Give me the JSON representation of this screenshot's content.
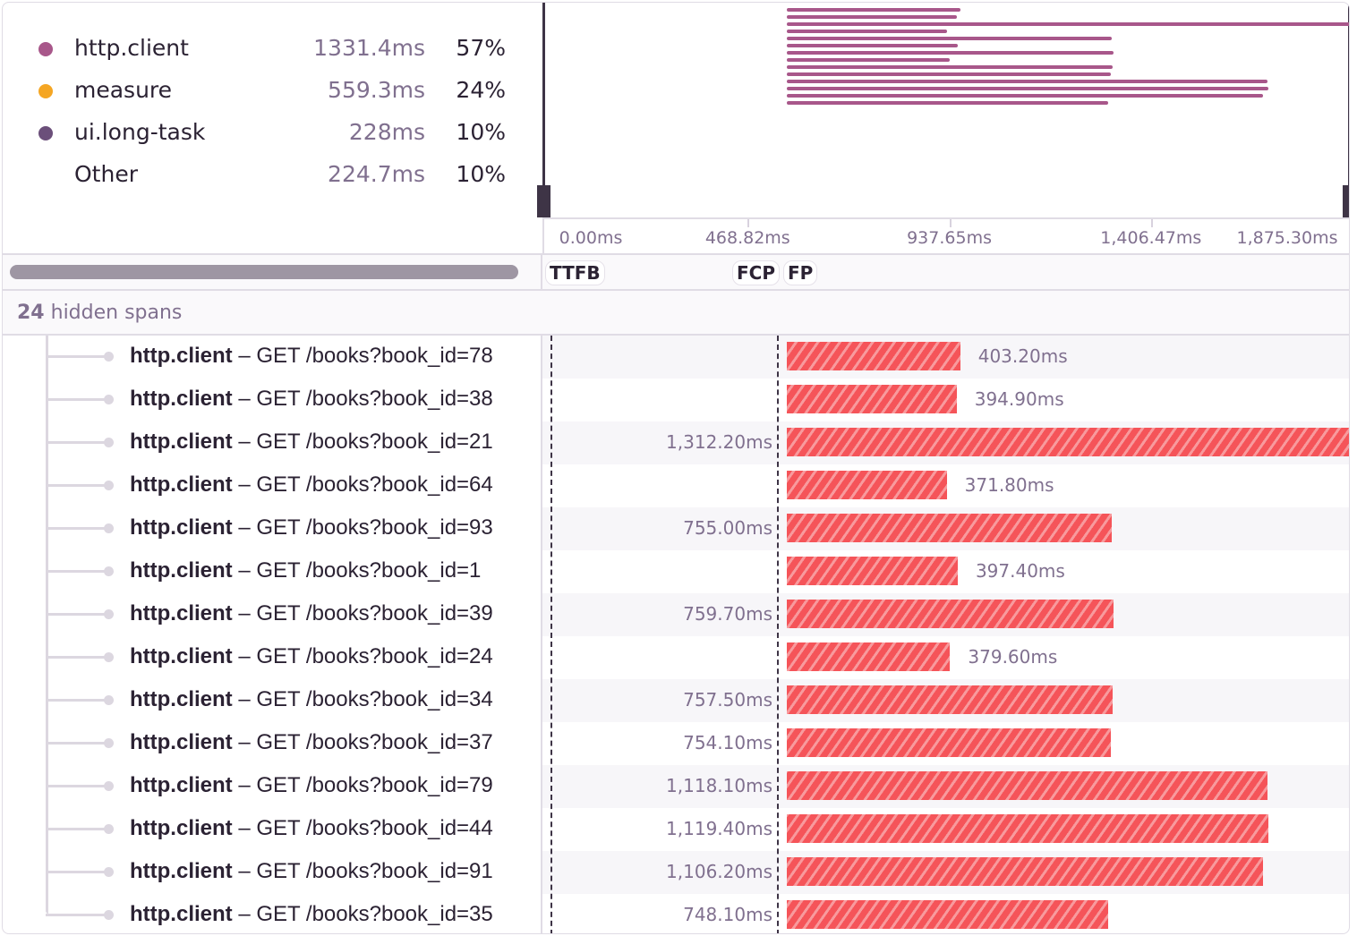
{
  "legend": [
    {
      "name": "http.client",
      "duration": "1331.4ms",
      "percent": "57%",
      "color": "#a8578a"
    },
    {
      "name": "measure",
      "duration": "559.3ms",
      "percent": "24%",
      "color": "#f5a623"
    },
    {
      "name": "ui.long-task",
      "duration": "228ms",
      "percent": "10%",
      "color": "#6b4f7a"
    },
    {
      "name": "Other",
      "duration": "224.7ms",
      "percent": "10%",
      "color": null
    }
  ],
  "axis": {
    "ticks": [
      "0.00ms",
      "468.82ms",
      "937.65ms",
      "1,406.47ms",
      "1,875.30ms"
    ],
    "tick_values_ms": [
      0,
      468.82,
      937.65,
      1406.47,
      1875.3
    ]
  },
  "markers": [
    "TTFB",
    "FCP",
    "FP"
  ],
  "hidden_spans": {
    "count": "24",
    "label": "hidden spans"
  },
  "colors": {
    "span_bar": "#f55459",
    "minimap_bar": "#a8578a"
  },
  "spans": [
    {
      "op": "http.client",
      "desc": "GET /books?book_id=78",
      "duration": "403.20ms",
      "ms": 403.2
    },
    {
      "op": "http.client",
      "desc": "GET /books?book_id=38",
      "duration": "394.90ms",
      "ms": 394.9
    },
    {
      "op": "http.client",
      "desc": "GET /books?book_id=21",
      "duration": "1,312.20ms",
      "ms": 1312.2
    },
    {
      "op": "http.client",
      "desc": "GET /books?book_id=64",
      "duration": "371.80ms",
      "ms": 371.8
    },
    {
      "op": "http.client",
      "desc": "GET /books?book_id=93",
      "duration": "755.00ms",
      "ms": 755.0
    },
    {
      "op": "http.client",
      "desc": "GET /books?book_id=1",
      "duration": "397.40ms",
      "ms": 397.4
    },
    {
      "op": "http.client",
      "desc": "GET /books?book_id=39",
      "duration": "759.70ms",
      "ms": 759.7
    },
    {
      "op": "http.client",
      "desc": "GET /books?book_id=24",
      "duration": "379.60ms",
      "ms": 379.6
    },
    {
      "op": "http.client",
      "desc": "GET /books?book_id=34",
      "duration": "757.50ms",
      "ms": 757.5
    },
    {
      "op": "http.client",
      "desc": "GET /books?book_id=37",
      "duration": "754.10ms",
      "ms": 754.1
    },
    {
      "op": "http.client",
      "desc": "GET /books?book_id=79",
      "duration": "1,118.10ms",
      "ms": 1118.1
    },
    {
      "op": "http.client",
      "desc": "GET /books?book_id=44",
      "duration": "1,119.40ms",
      "ms": 1119.4
    },
    {
      "op": "http.client",
      "desc": "GET /books?book_id=91",
      "duration": "1,106.20ms",
      "ms": 1106.2
    },
    {
      "op": "http.client",
      "desc": "GET /books?book_id=35",
      "duration": "748.10ms",
      "ms": 748.1
    }
  ]
}
